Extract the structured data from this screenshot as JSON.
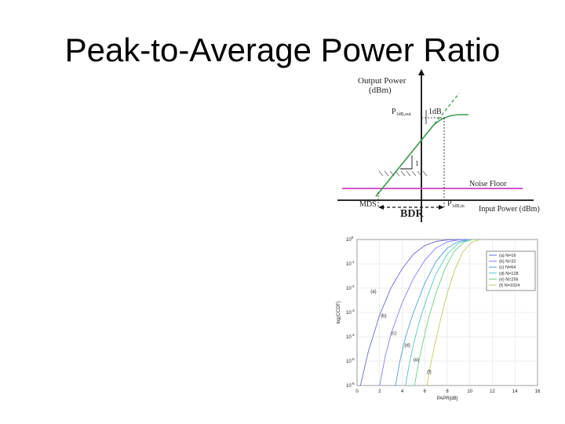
{
  "slide": {
    "title": "Peak-to-Average Power Ratio"
  },
  "amplifier_diagram": {
    "y_axis_label_line1": "Output Power",
    "y_axis_label_line2": "(dBm)",
    "p1db_out": "P",
    "p1db_out_sub": "1dB,out",
    "one_db": "1dB",
    "slope": "1",
    "noise_floor": "Noise Floor",
    "mds": "MDS",
    "bdr": "BDR",
    "p1db_in": "P",
    "p1db_in_sub": "1dB,in",
    "x_axis_label": "Input Power (dBm)",
    "colors": {
      "curve": "#3a9a4a",
      "noise_floor": "#d040c0",
      "axis": "#111111"
    }
  },
  "ccdf_chart": {
    "xlabel": "PAPR[dB]",
    "ylabel": "log(CCDF)",
    "x_ticks": [
      "0",
      "2",
      "4",
      "6",
      "8",
      "10",
      "12",
      "14",
      "16"
    ],
    "y_ticks": [
      {
        "base": "10",
        "exp": "0"
      },
      {
        "base": "10",
        "exp": "-1"
      },
      {
        "base": "10",
        "exp": "-2"
      },
      {
        "base": "10",
        "exp": "-3"
      },
      {
        "base": "10",
        "exp": "-4"
      },
      {
        "base": "10",
        "exp": "-5"
      },
      {
        "base": "10",
        "exp": "-6"
      }
    ],
    "legend": [
      {
        "text": "(a) N=16",
        "color": "#6a6ad8"
      },
      {
        "text": "(b) N=32",
        "color": "#8080ff"
      },
      {
        "text": "(c) N=64",
        "color": "#50a0e0"
      },
      {
        "text": "(d) N=128",
        "color": "#50c8c0"
      },
      {
        "text": "(e) N=256",
        "color": "#70d080"
      },
      {
        "text": "(f) N=1024",
        "color": "#c8c860"
      }
    ],
    "curve_labels": [
      "(a)",
      "(b)",
      "(c)",
      "(d)",
      "(e)",
      "(f)"
    ]
  },
  "chart_data": {
    "type": "line",
    "xlabel": "PAPR[dB]",
    "ylabel": "log(CCDF)",
    "xlim": [
      0,
      16
    ],
    "ylim": [
      -6,
      0
    ],
    "legend_position": "top-right",
    "series": [
      {
        "name": "(a) N=16",
        "x": [
          0.3,
          1.0,
          2.0,
          3.0,
          4.0,
          5.0,
          6.0,
          7.0,
          8.0,
          10.0
        ],
        "y": [
          -6.0,
          -4.6,
          -3.1,
          -2.0,
          -1.2,
          -0.6,
          -0.25,
          -0.08,
          -0.02,
          0.0
        ]
      },
      {
        "name": "(b) N=32",
        "x": [
          2.0,
          2.5,
          3.0,
          4.0,
          5.0,
          6.0,
          7.0,
          8.0,
          9.0,
          10.0
        ],
        "y": [
          -6.0,
          -4.8,
          -3.9,
          -2.6,
          -1.6,
          -0.85,
          -0.35,
          -0.1,
          -0.02,
          0.0
        ]
      },
      {
        "name": "(c) N=64",
        "x": [
          3.4,
          3.8,
          4.3,
          5.0,
          6.0,
          7.0,
          8.0,
          9.0,
          10.0
        ],
        "y": [
          -6.0,
          -5.0,
          -4.0,
          -3.0,
          -1.8,
          -0.9,
          -0.35,
          -0.08,
          0.0
        ]
      },
      {
        "name": "(d) N=128",
        "x": [
          4.3,
          4.6,
          5.0,
          5.5,
          6.2,
          7.0,
          8.0,
          9.0,
          10.0
        ],
        "y": [
          -6.0,
          -5.2,
          -4.3,
          -3.4,
          -2.4,
          -1.4,
          -0.6,
          -0.15,
          0.0
        ]
      },
      {
        "name": "(e) N=256",
        "x": [
          5.1,
          5.4,
          5.8,
          6.3,
          7.0,
          7.8,
          8.6,
          9.5,
          10.3
        ],
        "y": [
          -6.0,
          -5.2,
          -4.3,
          -3.3,
          -2.2,
          -1.2,
          -0.5,
          -0.1,
          0.0
        ]
      },
      {
        "name": "(f) N=1024",
        "x": [
          6.2,
          6.5,
          6.9,
          7.4,
          8.0,
          8.7,
          9.4,
          10.2,
          11.0
        ],
        "y": [
          -6.0,
          -5.2,
          -4.3,
          -3.3,
          -2.2,
          -1.2,
          -0.5,
          -0.1,
          0.0
        ]
      }
    ],
    "curve_label_points": [
      {
        "label": "(a)",
        "x": 1.2,
        "y": -2.2
      },
      {
        "label": "(b)",
        "x": 2.1,
        "y": -3.2
      },
      {
        "label": "(c)",
        "x": 3.0,
        "y": -3.9
      },
      {
        "label": "(d)",
        "x": 4.2,
        "y": -4.4
      },
      {
        "label": "(e)",
        "x": 5.0,
        "y": -5.0
      },
      {
        "label": "(f)",
        "x": 6.2,
        "y": -5.5
      }
    ]
  }
}
